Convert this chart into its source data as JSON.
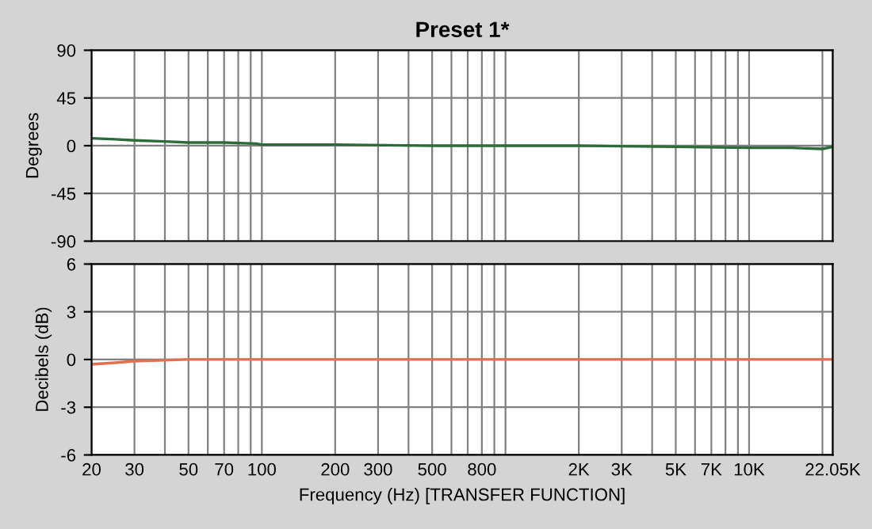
{
  "chart_data": [
    {
      "type": "line",
      "title": "Preset 1*",
      "ylabel": "Degrees",
      "x": [
        20,
        25,
        30,
        40,
        50,
        70,
        95,
        100,
        200,
        500,
        1000,
        2000,
        5000,
        10000,
        15000,
        20000,
        22050
      ],
      "series": [
        {
          "color": "#2e6b3a",
          "values": [
            7,
            6,
            5,
            4,
            3,
            3,
            2,
            1,
            1,
            0,
            0,
            0,
            -1,
            -2,
            -2,
            -3,
            -1
          ]
        }
      ],
      "xlim": [
        20,
        22050
      ],
      "ylim": [
        -90,
        90
      ],
      "yticks": [
        -90,
        -45,
        0,
        45,
        90
      ],
      "log": "x",
      "grid": true,
      "tick_labels": "y",
      "xticks": [
        20,
        30,
        40,
        50,
        60,
        70,
        80,
        90,
        100,
        200,
        300,
        400,
        500,
        600,
        700,
        800,
        900,
        1000,
        2000,
        3000,
        4000,
        5000,
        6000,
        7000,
        8000,
        9000,
        10000,
        20000,
        22050
      ]
    },
    {
      "type": "line",
      "ylabel": "Decibels (dB)",
      "xlabel": "Frequency (Hz) [TRANSFER FUNCTION]",
      "x": [
        20,
        25,
        30,
        50,
        100,
        1000,
        10000,
        22050
      ],
      "series": [
        {
          "color": "#e07050",
          "values": [
            -0.3,
            -0.2,
            -0.1,
            0,
            0,
            0,
            0,
            0
          ]
        }
      ],
      "xlim": [
        20,
        22050
      ],
      "ylim": [
        -6,
        6
      ],
      "yticks": [
        -6,
        -3,
        0,
        3,
        6
      ],
      "log": "x",
      "grid": true,
      "xticks": [
        20,
        30,
        {
          "value": 40,
          "label": null
        },
        50,
        {
          "value": 60,
          "label": null
        },
        70,
        {
          "value": 80,
          "label": null
        },
        {
          "value": 90,
          "label": null
        },
        100,
        200,
        300,
        {
          "value": 400,
          "label": null
        },
        500,
        {
          "value": 600,
          "label": null
        },
        {
          "value": 700,
          "label": null
        },
        800,
        {
          "value": 900,
          "label": null
        },
        {
          "value": 1000,
          "label": null
        },
        {
          "value": 2000,
          "label": "2K"
        },
        {
          "value": 3000,
          "label": "3K"
        },
        {
          "value": 4000,
          "label": null
        },
        {
          "value": 5000,
          "label": "5K"
        },
        {
          "value": 6000,
          "label": null
        },
        {
          "value": 7000,
          "label": "7K"
        },
        {
          "value": 8000,
          "label": null
        },
        {
          "value": 9000,
          "label": null
        },
        {
          "value": 10000,
          "label": "10K"
        },
        {
          "value": 20000,
          "label": null
        },
        {
          "value": 22050,
          "label": "22.05K"
        }
      ]
    }
  ]
}
